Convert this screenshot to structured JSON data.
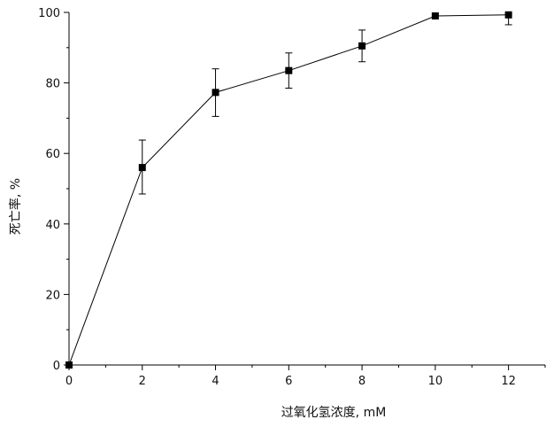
{
  "chart_data": {
    "type": "line",
    "title": "",
    "xlabel": "过氧化氢浓度, mM",
    "ylabel": "死亡率, %",
    "xlim": [
      0,
      13
    ],
    "ylim": [
      0,
      100
    ],
    "xticks": [
      0,
      2,
      4,
      6,
      8,
      10,
      12
    ],
    "yticks": [
      0,
      20,
      40,
      60,
      80,
      100
    ],
    "grid": false,
    "series": [
      {
        "x": [
          0,
          2,
          4,
          6,
          8,
          10,
          12
        ],
        "y": [
          0,
          56,
          77.3,
          83.5,
          90.5,
          99,
          99.3
        ],
        "error_low": [
          0,
          48.5,
          70.5,
          78.5,
          86,
          99,
          96.5
        ],
        "error_high": [
          0,
          63.8,
          84,
          88.5,
          95,
          99,
          99.5
        ],
        "marker": "square",
        "color": "#000000"
      }
    ]
  }
}
